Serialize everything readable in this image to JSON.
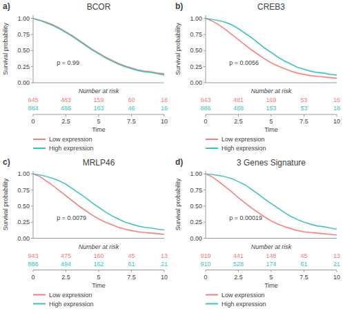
{
  "chart_data": [
    {
      "type": "line",
      "panel_label": "a)",
      "title": "BCOR",
      "annotation": "p = 0.99",
      "xlabel": "Time",
      "ylabel": "Survival probability",
      "at_risk_title": "Number at risk",
      "legend": "bottom",
      "xlim": [
        0,
        10
      ],
      "ylim": [
        0,
        1.05
      ],
      "xticks": [
        0,
        2.5,
        5,
        7.5,
        10
      ],
      "yticks": [
        {
          "value": 0,
          "label": "0.00"
        },
        {
          "value": 0.25,
          "label": "0.25"
        },
        {
          "value": 0.5,
          "label": "0.50"
        },
        {
          "value": 0.75,
          "label": "0.75"
        },
        {
          "value": 1,
          "label": "1.00"
        }
      ],
      "x": [
        0,
        0.5,
        1,
        1.5,
        2,
        2.5,
        3,
        3.5,
        4,
        4.5,
        5,
        5.5,
        6,
        6.5,
        7,
        7.5,
        8,
        8.5,
        9,
        9.5,
        10
      ],
      "series": [
        {
          "name": "Low expression",
          "color": "#F08080",
          "values": [
            1.0,
            0.97,
            0.94,
            0.9,
            0.85,
            0.79,
            0.73,
            0.66,
            0.59,
            0.52,
            0.46,
            0.4,
            0.35,
            0.3,
            0.26,
            0.23,
            0.2,
            0.18,
            0.17,
            0.15,
            0.14
          ],
          "ci_upper": [
            1.0,
            0.98,
            0.955,
            0.915,
            0.865,
            0.805,
            0.745,
            0.675,
            0.605,
            0.535,
            0.475,
            0.415,
            0.365,
            0.315,
            0.275,
            0.245,
            0.215,
            0.195,
            0.185,
            0.165,
            0.155
          ],
          "ci_lower": [
            1.0,
            0.96,
            0.925,
            0.885,
            0.835,
            0.775,
            0.715,
            0.645,
            0.575,
            0.505,
            0.445,
            0.385,
            0.335,
            0.285,
            0.245,
            0.215,
            0.185,
            0.165,
            0.155,
            0.135,
            0.125
          ],
          "at_risk": [
            945,
            483,
            159,
            60,
            18
          ]
        },
        {
          "name": "High expression",
          "color": "#3DBFBF",
          "values": [
            1.0,
            0.97,
            0.93,
            0.89,
            0.84,
            0.78,
            0.72,
            0.65,
            0.58,
            0.51,
            0.45,
            0.39,
            0.34,
            0.29,
            0.25,
            0.22,
            0.19,
            0.17,
            0.16,
            0.14,
            0.12
          ],
          "ci_upper": [
            1.0,
            0.98,
            0.945,
            0.905,
            0.855,
            0.795,
            0.735,
            0.665,
            0.595,
            0.525,
            0.465,
            0.405,
            0.355,
            0.305,
            0.265,
            0.235,
            0.205,
            0.185,
            0.175,
            0.155,
            0.135
          ],
          "ci_lower": [
            1.0,
            0.96,
            0.915,
            0.875,
            0.825,
            0.765,
            0.705,
            0.635,
            0.565,
            0.495,
            0.435,
            0.375,
            0.325,
            0.275,
            0.235,
            0.205,
            0.175,
            0.155,
            0.145,
            0.125,
            0.105
          ],
          "at_risk": [
            884,
            486,
            163,
            46,
            16
          ]
        }
      ]
    },
    {
      "type": "line",
      "panel_label": "b)",
      "title": "CREB3",
      "annotation": "p = 0.0056",
      "xlabel": "Time",
      "ylabel": "Survival probability",
      "at_risk_title": "Number at risk",
      "legend": "bottom",
      "xlim": [
        0,
        10
      ],
      "ylim": [
        0,
        1.05
      ],
      "xticks": [
        0,
        2.5,
        5,
        7.5,
        10
      ],
      "yticks": [
        {
          "value": 0,
          "label": "0.00"
        },
        {
          "value": 0.25,
          "label": "0.25"
        },
        {
          "value": 0.5,
          "label": "0.50"
        },
        {
          "value": 0.75,
          "label": "0.75"
        },
        {
          "value": 1,
          "label": "1.00"
        }
      ],
      "x": [
        0,
        0.5,
        1,
        1.5,
        2,
        2.5,
        3,
        3.5,
        4,
        4.5,
        5,
        5.5,
        6,
        6.5,
        7,
        7.5,
        8,
        8.5,
        9,
        9.5,
        10
      ],
      "series": [
        {
          "name": "Low expression",
          "color": "#F08080",
          "values": [
            1.0,
            0.96,
            0.9,
            0.83,
            0.75,
            0.67,
            0.59,
            0.51,
            0.44,
            0.37,
            0.31,
            0.26,
            0.22,
            0.18,
            0.15,
            0.13,
            0.11,
            0.1,
            0.09,
            0.08,
            0.07
          ],
          "ci_upper": [
            1.0,
            0.97,
            0.915,
            0.845,
            0.765,
            0.685,
            0.605,
            0.525,
            0.455,
            0.385,
            0.325,
            0.275,
            0.235,
            0.195,
            0.165,
            0.145,
            0.125,
            0.115,
            0.105,
            0.095,
            0.085
          ],
          "ci_lower": [
            1.0,
            0.95,
            0.885,
            0.815,
            0.735,
            0.655,
            0.575,
            0.495,
            0.425,
            0.355,
            0.295,
            0.245,
            0.205,
            0.165,
            0.135,
            0.115,
            0.095,
            0.085,
            0.075,
            0.065,
            0.055
          ],
          "at_risk": [
            943,
            481,
            169,
            53,
            16
          ]
        },
        {
          "name": "High expression",
          "color": "#3DBFBF",
          "values": [
            1.0,
            0.985,
            0.965,
            0.94,
            0.9,
            0.84,
            0.77,
            0.7,
            0.62,
            0.54,
            0.47,
            0.4,
            0.34,
            0.29,
            0.24,
            0.21,
            0.18,
            0.16,
            0.15,
            0.13,
            0.12
          ],
          "ci_upper": [
            1.0,
            0.99,
            0.97,
            0.95,
            0.91,
            0.855,
            0.785,
            0.715,
            0.635,
            0.555,
            0.485,
            0.415,
            0.355,
            0.305,
            0.255,
            0.225,
            0.195,
            0.175,
            0.165,
            0.145,
            0.135
          ],
          "ci_lower": [
            1.0,
            0.98,
            0.96,
            0.93,
            0.89,
            0.825,
            0.755,
            0.685,
            0.605,
            0.525,
            0.455,
            0.385,
            0.325,
            0.275,
            0.225,
            0.195,
            0.165,
            0.145,
            0.135,
            0.115,
            0.105
          ],
          "at_risk": [
            886,
            488,
            153,
            53,
            18
          ]
        }
      ]
    },
    {
      "type": "line",
      "panel_label": "c)",
      "title": "MRLP46",
      "annotation": "p = 0.0079",
      "xlabel": "Time",
      "ylabel": "Survival probability",
      "at_risk_title": "Number at risk",
      "legend": "bottom",
      "xlim": [
        0,
        10
      ],
      "ylim": [
        0,
        1.05
      ],
      "xticks": [
        0,
        2.5,
        5,
        7.5,
        10
      ],
      "yticks": [
        {
          "value": 0,
          "label": "0.00"
        },
        {
          "value": 0.25,
          "label": "0.25"
        },
        {
          "value": 0.5,
          "label": "0.50"
        },
        {
          "value": 0.75,
          "label": "0.75"
        },
        {
          "value": 1,
          "label": "1.00"
        }
      ],
      "x": [
        0,
        0.5,
        1,
        1.5,
        2,
        2.5,
        3,
        3.5,
        4,
        4.5,
        5,
        5.5,
        6,
        6.5,
        7,
        7.5,
        8,
        8.5,
        9,
        9.5,
        10
      ],
      "series": [
        {
          "name": "Low expression",
          "color": "#F08080",
          "values": [
            1.0,
            0.96,
            0.89,
            0.82,
            0.74,
            0.66,
            0.58,
            0.5,
            0.43,
            0.36,
            0.3,
            0.25,
            0.21,
            0.17,
            0.14,
            0.12,
            0.1,
            0.09,
            0.08,
            0.07,
            0.06
          ],
          "ci_upper": [
            1.0,
            0.97,
            0.905,
            0.835,
            0.755,
            0.675,
            0.595,
            0.515,
            0.445,
            0.375,
            0.315,
            0.265,
            0.225,
            0.185,
            0.155,
            0.135,
            0.115,
            0.105,
            0.095,
            0.085,
            0.075
          ],
          "ci_lower": [
            1.0,
            0.95,
            0.875,
            0.805,
            0.725,
            0.645,
            0.565,
            0.485,
            0.415,
            0.345,
            0.285,
            0.235,
            0.195,
            0.155,
            0.125,
            0.105,
            0.085,
            0.075,
            0.065,
            0.055,
            0.045
          ],
          "at_risk": [
            943,
            475,
            160,
            45,
            13
          ]
        },
        {
          "name": "High expression",
          "color": "#3DBFBF",
          "values": [
            1.0,
            0.985,
            0.96,
            0.93,
            0.89,
            0.84,
            0.77,
            0.7,
            0.63,
            0.55,
            0.48,
            0.41,
            0.35,
            0.3,
            0.25,
            0.22,
            0.19,
            0.17,
            0.16,
            0.14,
            0.13
          ],
          "ci_upper": [
            1.0,
            0.99,
            0.965,
            0.94,
            0.9,
            0.85,
            0.78,
            0.71,
            0.64,
            0.56,
            0.49,
            0.42,
            0.36,
            0.31,
            0.26,
            0.23,
            0.2,
            0.18,
            0.17,
            0.15,
            0.14
          ],
          "ci_lower": [
            1.0,
            0.98,
            0.955,
            0.92,
            0.88,
            0.83,
            0.76,
            0.69,
            0.62,
            0.54,
            0.47,
            0.4,
            0.34,
            0.29,
            0.24,
            0.21,
            0.18,
            0.16,
            0.15,
            0.13,
            0.12
          ],
          "at_risk": [
            886,
            494,
            162,
            61,
            21
          ]
        }
      ]
    },
    {
      "type": "line",
      "panel_label": "d)",
      "title": "3 Genes Signature",
      "annotation": "p = 0.00019",
      "xlabel": "Time",
      "ylabel": "Survival probability",
      "at_risk_title": "Number at risk",
      "legend": "bottom",
      "xlim": [
        0,
        10
      ],
      "ylim": [
        0,
        1.05
      ],
      "xticks": [
        0,
        2.5,
        5,
        7.5,
        10
      ],
      "yticks": [
        {
          "value": 0,
          "label": "0.00"
        },
        {
          "value": 0.25,
          "label": "0.25"
        },
        {
          "value": 0.5,
          "label": "0.50"
        },
        {
          "value": 0.75,
          "label": "0.75"
        },
        {
          "value": 1,
          "label": "1.00"
        }
      ],
      "x": [
        0,
        0.5,
        1,
        1.5,
        2,
        2.5,
        3,
        3.5,
        4,
        4.5,
        5,
        5.5,
        6,
        6.5,
        7,
        7.5,
        8,
        8.5,
        9,
        9.5,
        10
      ],
      "series": [
        {
          "name": "Low expression",
          "color": "#F08080",
          "values": [
            1.0,
            0.955,
            0.88,
            0.8,
            0.72,
            0.63,
            0.55,
            0.47,
            0.4,
            0.33,
            0.27,
            0.22,
            0.18,
            0.15,
            0.12,
            0.1,
            0.09,
            0.08,
            0.07,
            0.06,
            0.05
          ],
          "ci_upper": [
            1.0,
            0.965,
            0.895,
            0.815,
            0.735,
            0.645,
            0.565,
            0.485,
            0.415,
            0.345,
            0.285,
            0.235,
            0.195,
            0.165,
            0.135,
            0.115,
            0.105,
            0.095,
            0.085,
            0.075,
            0.065
          ],
          "ci_lower": [
            1.0,
            0.945,
            0.865,
            0.785,
            0.705,
            0.615,
            0.535,
            0.455,
            0.385,
            0.315,
            0.255,
            0.205,
            0.165,
            0.135,
            0.105,
            0.085,
            0.075,
            0.065,
            0.055,
            0.045,
            0.035
          ],
          "at_risk": [
            919,
            441,
            148,
            45,
            13
          ]
        },
        {
          "name": "High expression",
          "color": "#3DBFBF",
          "values": [
            1.0,
            0.99,
            0.975,
            0.955,
            0.925,
            0.88,
            0.83,
            0.76,
            0.69,
            0.61,
            0.54,
            0.47,
            0.4,
            0.34,
            0.29,
            0.25,
            0.22,
            0.19,
            0.18,
            0.16,
            0.14
          ],
          "ci_upper": [
            1.0,
            0.995,
            0.98,
            0.96,
            0.93,
            0.885,
            0.84,
            0.77,
            0.7,
            0.62,
            0.55,
            0.48,
            0.41,
            0.35,
            0.3,
            0.26,
            0.23,
            0.2,
            0.19,
            0.17,
            0.15
          ],
          "ci_lower": [
            1.0,
            0.985,
            0.97,
            0.95,
            0.92,
            0.875,
            0.82,
            0.75,
            0.68,
            0.6,
            0.53,
            0.46,
            0.39,
            0.33,
            0.28,
            0.24,
            0.21,
            0.18,
            0.17,
            0.15,
            0.13
          ],
          "at_risk": [
            910,
            528,
            174,
            61,
            21
          ]
        }
      ]
    }
  ]
}
